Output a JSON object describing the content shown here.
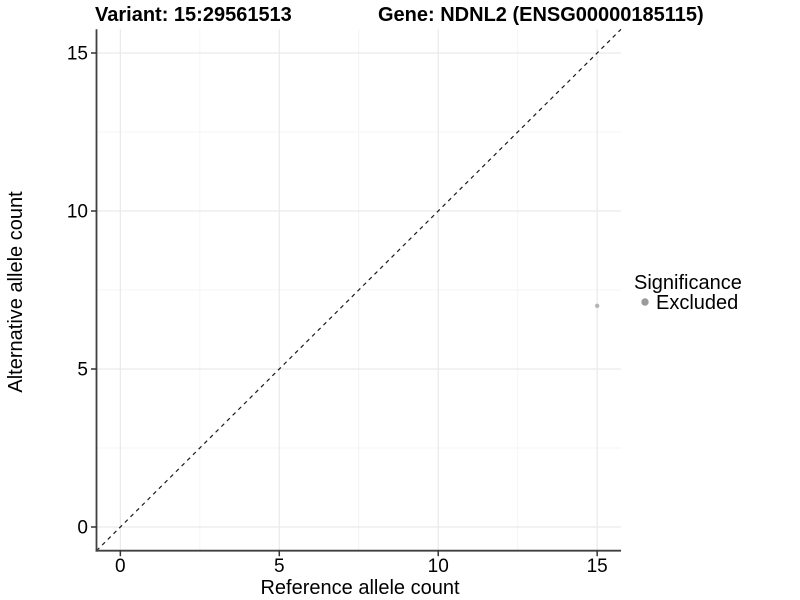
{
  "header": {
    "title_left": "Variant: 15:29561513",
    "title_right": "Gene: NDNL2 (ENSG00000185115)"
  },
  "chart_data": {
    "type": "scatter",
    "title_left": "Variant: 15:29561513",
    "title_right": "Gene: NDNL2 (ENSG00000185115)",
    "xlabel": "Reference allele count",
    "ylabel": "Alternative allele count",
    "xlim": [
      -0.75,
      15.75
    ],
    "ylim": [
      -0.75,
      15.75
    ],
    "x_ticks": [
      0,
      5,
      10,
      15
    ],
    "y_ticks": [
      0,
      5,
      10,
      15
    ],
    "minor_gridlines": [
      2.5,
      7.5,
      12.5
    ],
    "grid": {
      "enabled": true,
      "major_color": "#e9e9e9",
      "minor_color": "#f4f4f4"
    },
    "identity_line": {
      "from": [
        -0.75,
        -0.75
      ],
      "to": [
        15.75,
        15.75
      ],
      "style": "dashed",
      "color": "#1a1a1a"
    },
    "legend": {
      "position": "right",
      "title": "Significance",
      "entries": [
        {
          "label": "Excluded",
          "color": "#9b9b9b"
        }
      ]
    },
    "series": [
      {
        "name": "Excluded",
        "color": "#b5b5b5",
        "point_radius": 2.2,
        "points": [
          {
            "x": 15,
            "y": 7
          }
        ]
      }
    ],
    "axis_color": "#404040",
    "tick_label_color": "#000000"
  }
}
